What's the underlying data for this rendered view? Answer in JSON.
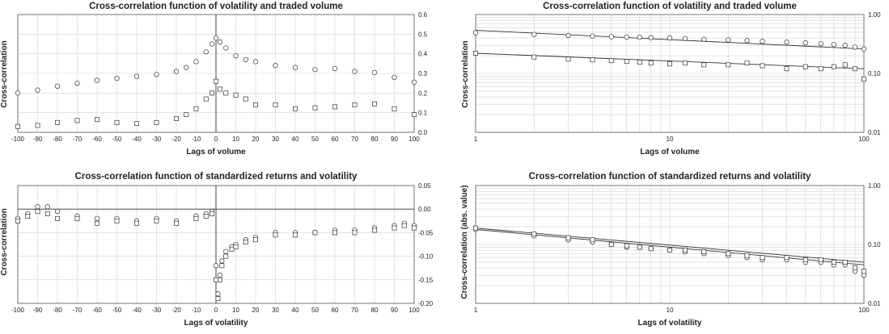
{
  "chart_data": [
    {
      "id": "p1",
      "type": "scatter",
      "title": "Cross-correlation function of volatility and traded volume",
      "xlabel": "Lags of volume",
      "ylabel": "Cross-correlation",
      "xscale": "linear",
      "yscale": "linear",
      "xlim": [
        -100,
        100
      ],
      "ylim": [
        0,
        0.6
      ],
      "xticks": [
        -100,
        -90,
        -80,
        -70,
        -60,
        -50,
        -40,
        -30,
        -20,
        -10,
        0,
        10,
        20,
        30,
        40,
        50,
        60,
        70,
        80,
        90,
        100
      ],
      "yticks": [
        0,
        0.1,
        0.2,
        0.3,
        0.4,
        0.5,
        0.6
      ],
      "yticklabels": [
        "0.0",
        "0.1",
        "0.2",
        "0.3",
        "0.4",
        "0.5",
        "0.6"
      ],
      "y_axis_side": "right",
      "grid": true,
      "series": [
        {
          "marker": "circle",
          "x": [
            -100,
            -90,
            -80,
            -70,
            -60,
            -50,
            -40,
            -30,
            -20,
            -15,
            -10,
            -5,
            -2,
            0,
            2,
            5,
            10,
            15,
            20,
            30,
            40,
            50,
            60,
            70,
            80,
            90,
            100
          ],
          "y": [
            0.2,
            0.215,
            0.235,
            0.25,
            0.265,
            0.275,
            0.285,
            0.295,
            0.31,
            0.33,
            0.36,
            0.41,
            0.45,
            0.48,
            0.46,
            0.43,
            0.39,
            0.37,
            0.36,
            0.34,
            0.33,
            0.32,
            0.325,
            0.31,
            0.305,
            0.28,
            0.255
          ]
        },
        {
          "marker": "square",
          "x": [
            -100,
            -90,
            -80,
            -70,
            -60,
            -50,
            -40,
            -30,
            -20,
            -15,
            -10,
            -5,
            -2,
            0,
            2,
            5,
            10,
            15,
            20,
            30,
            40,
            50,
            60,
            70,
            80,
            90,
            100
          ],
          "y": [
            0.03,
            0.035,
            0.05,
            0.06,
            0.065,
            0.05,
            0.045,
            0.05,
            0.07,
            0.09,
            0.12,
            0.17,
            0.2,
            0.26,
            0.22,
            0.2,
            0.19,
            0.17,
            0.14,
            0.14,
            0.12,
            0.125,
            0.13,
            0.14,
            0.145,
            0.12,
            0.09
          ]
        }
      ]
    },
    {
      "id": "p2",
      "type": "scatter",
      "title": "Cross-correlation function of volatility and traded volume",
      "xlabel": "Lags of volume",
      "ylabel": "Cross-correlation",
      "xscale": "log",
      "yscale": "log",
      "xlim": [
        1,
        100
      ],
      "ylim": [
        0.01,
        1
      ],
      "xticks": [
        1,
        10,
        100
      ],
      "yticks": [
        0.01,
        0.1,
        1
      ],
      "yticklabels": [
        "0.01",
        "0.10",
        "1.00"
      ],
      "y_axis_side": "right",
      "grid": true,
      "series": [
        {
          "marker": "circle",
          "x": [
            1,
            2,
            3,
            4,
            5,
            6,
            7,
            8,
            10,
            12,
            15,
            20,
            25,
            30,
            40,
            50,
            60,
            70,
            80,
            90,
            100
          ],
          "y": [
            0.49,
            0.46,
            0.44,
            0.43,
            0.42,
            0.415,
            0.41,
            0.405,
            0.4,
            0.39,
            0.38,
            0.37,
            0.36,
            0.35,
            0.34,
            0.33,
            0.32,
            0.31,
            0.3,
            0.28,
            0.26
          ],
          "fit": [
            [
              1,
              0.54
            ],
            [
              100,
              0.26
            ]
          ]
        },
        {
          "marker": "square",
          "x": [
            1,
            2,
            3,
            4,
            5,
            6,
            7,
            8,
            10,
            12,
            15,
            20,
            25,
            30,
            40,
            50,
            60,
            70,
            80,
            90,
            100
          ],
          "y": [
            0.22,
            0.19,
            0.175,
            0.17,
            0.165,
            0.16,
            0.155,
            0.15,
            0.145,
            0.15,
            0.14,
            0.14,
            0.15,
            0.135,
            0.12,
            0.13,
            0.12,
            0.13,
            0.14,
            0.12,
            0.08
          ],
          "fit": [
            [
              1,
              0.22
            ],
            [
              100,
              0.12
            ]
          ]
        }
      ]
    },
    {
      "id": "p3",
      "type": "scatter",
      "title": "Cross-correlation function of standardized returns and volatility",
      "xlabel": "Lags of volatility",
      "ylabel": "Cross-correlation",
      "xscale": "linear",
      "yscale": "linear",
      "xlim": [
        -100,
        100
      ],
      "ylim": [
        -0.2,
        0.05
      ],
      "xticks": [
        -100,
        -90,
        -80,
        -70,
        -60,
        -50,
        -40,
        -30,
        -20,
        -10,
        0,
        10,
        20,
        30,
        40,
        50,
        60,
        70,
        80,
        90,
        100
      ],
      "yticks": [
        -0.2,
        -0.15,
        -0.1,
        -0.05,
        0,
        0.05
      ],
      "yticklabels": [
        "-0.20",
        "-0.15",
        "-0.10",
        "-0.05",
        "0.00",
        "0.05"
      ],
      "y_axis_side": "right",
      "grid": true,
      "series": [
        {
          "marker": "circle",
          "x": [
            -100,
            -95,
            -90,
            -85,
            -80,
            -70,
            -60,
            -50,
            -40,
            -30,
            -20,
            -10,
            -5,
            -2,
            0,
            1,
            2,
            3,
            5,
            8,
            10,
            15,
            20,
            30,
            40,
            50,
            60,
            70,
            80,
            90,
            95,
            100
          ],
          "y": [
            -0.02,
            -0.01,
            0.005,
            0.005,
            -0.005,
            -0.015,
            -0.02,
            -0.02,
            -0.025,
            -0.02,
            -0.025,
            -0.015,
            -0.01,
            -0.005,
            -0.12,
            -0.18,
            -0.14,
            -0.11,
            -0.09,
            -0.08,
            -0.075,
            -0.065,
            -0.06,
            -0.05,
            -0.05,
            -0.05,
            -0.045,
            -0.045,
            -0.04,
            -0.035,
            -0.03,
            -0.035
          ]
        },
        {
          "marker": "square",
          "x": [
            -100,
            -95,
            -90,
            -85,
            -80,
            -70,
            -60,
            -50,
            -40,
            -30,
            -20,
            -10,
            -5,
            -2,
            0,
            1,
            2,
            3,
            5,
            8,
            10,
            15,
            20,
            30,
            40,
            50,
            60,
            70,
            80,
            90,
            95,
            100
          ],
          "y": [
            -0.025,
            -0.015,
            -0.005,
            -0.01,
            -0.02,
            -0.02,
            -0.03,
            -0.025,
            -0.03,
            -0.025,
            -0.03,
            -0.02,
            -0.015,
            -0.01,
            -0.15,
            -0.19,
            -0.15,
            -0.12,
            -0.1,
            -0.085,
            -0.08,
            -0.07,
            -0.065,
            -0.055,
            -0.055,
            -0.05,
            -0.05,
            -0.05,
            -0.045,
            -0.04,
            -0.035,
            -0.04
          ]
        }
      ]
    },
    {
      "id": "p4",
      "type": "scatter",
      "title": "Cross-correlation function of standardized returns and volatility",
      "xlabel": "Lags of volatility",
      "ylabel": "Cross-correlation (abs. value)",
      "xscale": "log",
      "yscale": "log",
      "xlim": [
        1,
        100
      ],
      "ylim": [
        0.01,
        1
      ],
      "xticks": [
        1,
        10,
        100
      ],
      "yticks": [
        0.01,
        0.1,
        1
      ],
      "yticklabels": [
        "0.01",
        "0.10",
        "1.00"
      ],
      "y_axis_side": "right",
      "grid": true,
      "series": [
        {
          "marker": "circle",
          "x": [
            1,
            2,
            3,
            4,
            5,
            6,
            7,
            8,
            10,
            12,
            15,
            20,
            25,
            30,
            40,
            50,
            60,
            70,
            80,
            90,
            100
          ],
          "y": [
            0.18,
            0.14,
            0.12,
            0.11,
            0.1,
            0.09,
            0.09,
            0.085,
            0.08,
            0.075,
            0.07,
            0.065,
            0.06,
            0.055,
            0.055,
            0.05,
            0.05,
            0.045,
            0.045,
            0.035,
            0.03
          ],
          "fit": [
            [
              1,
              0.18
            ],
            [
              100,
              0.045
            ]
          ]
        },
        {
          "marker": "square",
          "x": [
            1,
            2,
            3,
            4,
            5,
            6,
            7,
            8,
            10,
            12,
            15,
            20,
            25,
            30,
            40,
            50,
            60,
            70,
            80,
            90,
            100
          ],
          "y": [
            0.19,
            0.15,
            0.13,
            0.12,
            0.1,
            0.095,
            0.09,
            0.085,
            0.08,
            0.08,
            0.075,
            0.07,
            0.065,
            0.06,
            0.06,
            0.055,
            0.055,
            0.05,
            0.05,
            0.04,
            0.035
          ],
          "fit": [
            [
              1,
              0.19
            ],
            [
              100,
              0.05
            ]
          ]
        }
      ]
    }
  ]
}
